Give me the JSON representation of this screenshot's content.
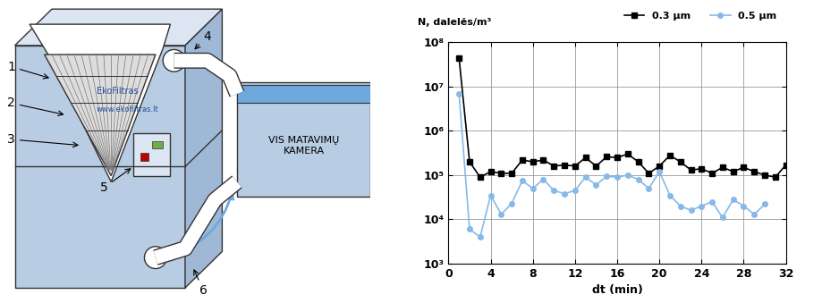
{
  "diagram": {
    "numbers": [
      "1",
      "2",
      "3",
      "4",
      "5",
      "6"
    ],
    "brand": "EkoFiltras",
    "website": "www.ekofiltras.lt",
    "chamber_lines": [
      "VIS MATAVIMŲ",
      "KAMERA"
    ]
  },
  "chart_data": {
    "type": "line",
    "y_label": "N, dalelės/m³",
    "x_label": "dt (min)",
    "log": "y",
    "grid": true,
    "legend": "upper right",
    "xlim": [
      0,
      32
    ],
    "xticks": [
      0,
      4,
      8,
      12,
      16,
      20,
      24,
      28,
      32
    ],
    "ylim": [
      1000,
      100000000
    ],
    "yticks": [
      {
        "value": 1000,
        "label": "10³"
      },
      {
        "value": 10000,
        "label": "10⁴"
      },
      {
        "value": 100000,
        "label": "10⁵"
      },
      {
        "value": 1000000,
        "label": "10⁶"
      },
      {
        "value": 10000000,
        "label": "10⁷"
      },
      {
        "value": 100000000,
        "label": "10⁸"
      }
    ],
    "series": [
      {
        "name": "0.3 µm",
        "color": "#000000",
        "marker": "s",
        "line_style": "solid",
        "x": [
          1,
          2,
          3,
          4,
          5,
          6,
          7,
          8,
          9,
          10,
          11,
          12,
          13,
          14,
          15,
          16,
          17,
          18,
          19,
          20,
          21,
          22,
          23,
          24,
          25,
          26,
          27,
          28,
          29,
          30,
          31,
          32
        ],
        "values": [
          45000000,
          200000,
          90000,
          120000,
          110000,
          110000,
          220000,
          200000,
          220000,
          160000,
          170000,
          160000,
          250000,
          160000,
          260000,
          250000,
          300000,
          200000,
          110000,
          160000,
          280000,
          200000,
          130000,
          140000,
          110000,
          150000,
          120000,
          150000,
          120000,
          100000,
          90000,
          170000
        ]
      },
      {
        "name": "0.5 µm",
        "color": "#87b9e8",
        "marker": "o",
        "line_style": "solid",
        "x": [
          1,
          2,
          3,
          4,
          5,
          6,
          7,
          8,
          9,
          10,
          11,
          12,
          13,
          14,
          15,
          16,
          17,
          18,
          19,
          20,
          21,
          22,
          23,
          24,
          25,
          26,
          27,
          28,
          29,
          30
        ],
        "values": [
          7000000,
          6000,
          4000,
          35000,
          13000,
          23000,
          75000,
          50000,
          80000,
          45000,
          38000,
          45000,
          90000,
          60000,
          95000,
          90000,
          100000,
          80000,
          50000,
          120000,
          35000,
          20000,
          16000,
          20000,
          25000,
          11000,
          28000,
          20000,
          13000,
          22000
        ]
      }
    ]
  }
}
